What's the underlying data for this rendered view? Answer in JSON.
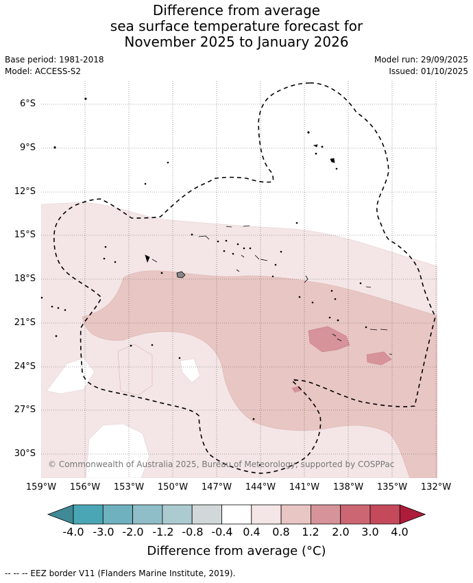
{
  "title": {
    "line1": "Difference from average",
    "line2": "sea surface temperature forecast for",
    "line3": "November 2025 to January 2026"
  },
  "meta": {
    "base_period": "Base period: 1981-2018",
    "model": "Model: ACCESS-S2",
    "model_run": "Model run: 29/09/2025",
    "issued": "Issued: 01/10/2025"
  },
  "map": {
    "lat_labels": [
      "6°S",
      "9°S",
      "12°S",
      "15°S",
      "18°S",
      "21°S",
      "24°S",
      "27°S",
      "30°S"
    ],
    "lon_labels": [
      "159°W",
      "156°W",
      "153°W",
      "150°W",
      "147°W",
      "144°W",
      "141°W",
      "138°W",
      "135°W",
      "132°W"
    ],
    "copyright": "© Commonwealth of Australia 2025, Bureau of Meteorology, supported by COSPPac"
  },
  "colorbar": {
    "ticks": [
      "-4.0",
      "-3.0",
      "-2.0",
      "-1.2",
      "-0.8",
      "-0.4",
      "0.4",
      "0.8",
      "1.2",
      "2.0",
      "3.0",
      "4.0"
    ],
    "colors": [
      "#3f8a96",
      "#4aa6b5",
      "#6fb1bf",
      "#8fbec9",
      "#abcbd0",
      "#d2d8da",
      "#ffffff",
      "#f4e6e6",
      "#e8c6c4",
      "#d69399",
      "#cc6673",
      "#c44a5b",
      "#ad1c3b"
    ],
    "label": "Difference from average (°C)"
  },
  "footer": "--  --  -- EEZ border V11 (Flanders Marine Institute, 2019)."
}
